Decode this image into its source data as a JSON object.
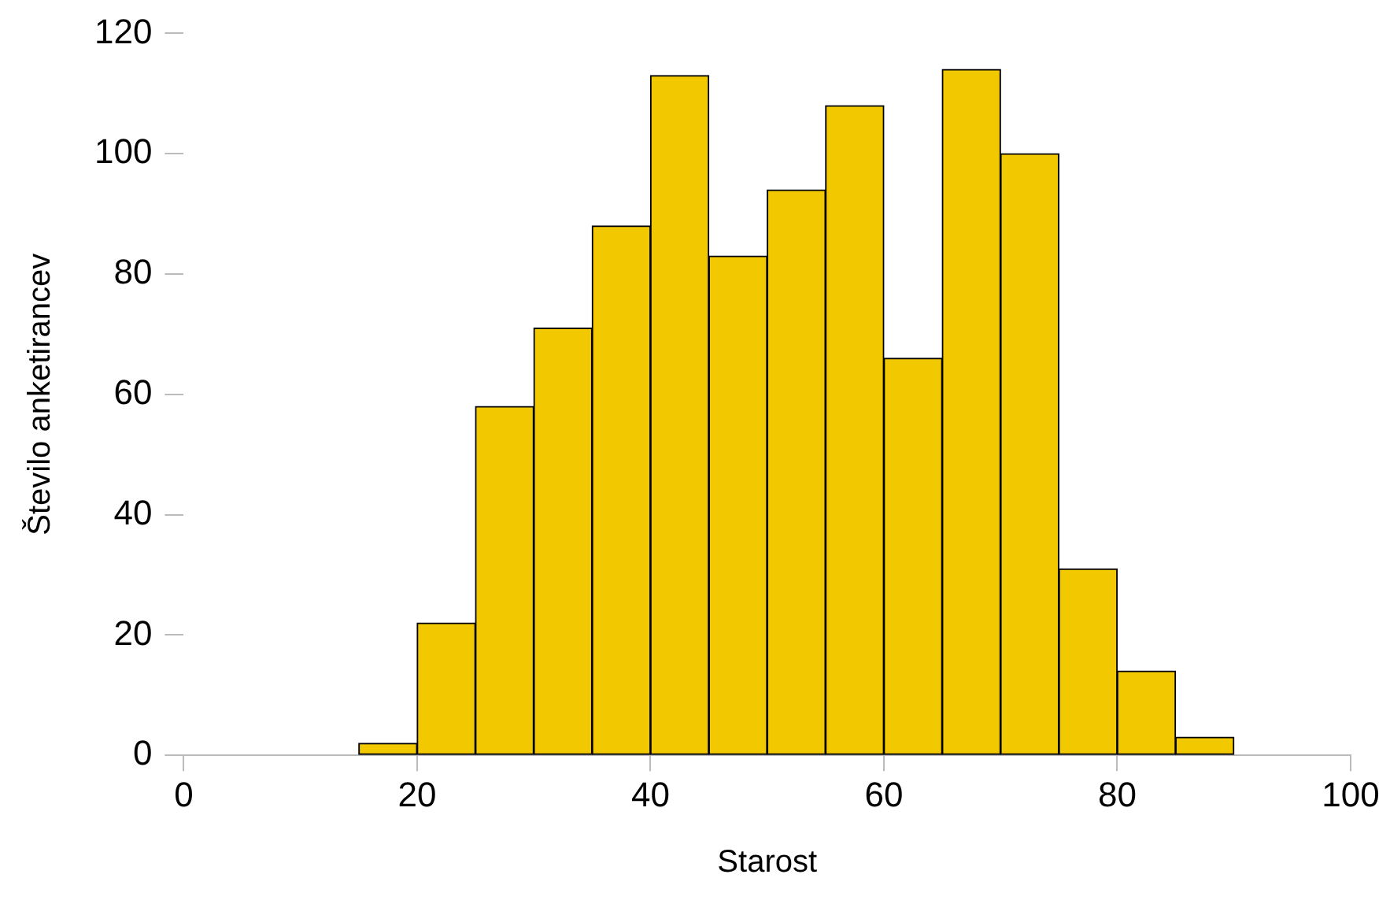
{
  "chart_data": {
    "type": "histogram",
    "xlabel": "Starost",
    "ylabel": "Število anketirancev",
    "bins": [
      15,
      20,
      25,
      30,
      35,
      40,
      45,
      50,
      55,
      60,
      65,
      70,
      75,
      80,
      85,
      90
    ],
    "values": [
      2,
      22,
      58,
      71,
      88,
      113,
      83,
      94,
      108,
      66,
      114,
      100,
      31,
      14,
      3
    ],
    "color": "#f2c800",
    "xlim": [
      0,
      100
    ],
    "xticks": [
      0,
      20,
      40,
      60,
      80,
      100
    ],
    "ylim": [
      0,
      120
    ],
    "yticks": [
      0,
      20,
      40,
      60,
      80,
      100,
      120
    ],
    "grid": false,
    "legend": false
  }
}
